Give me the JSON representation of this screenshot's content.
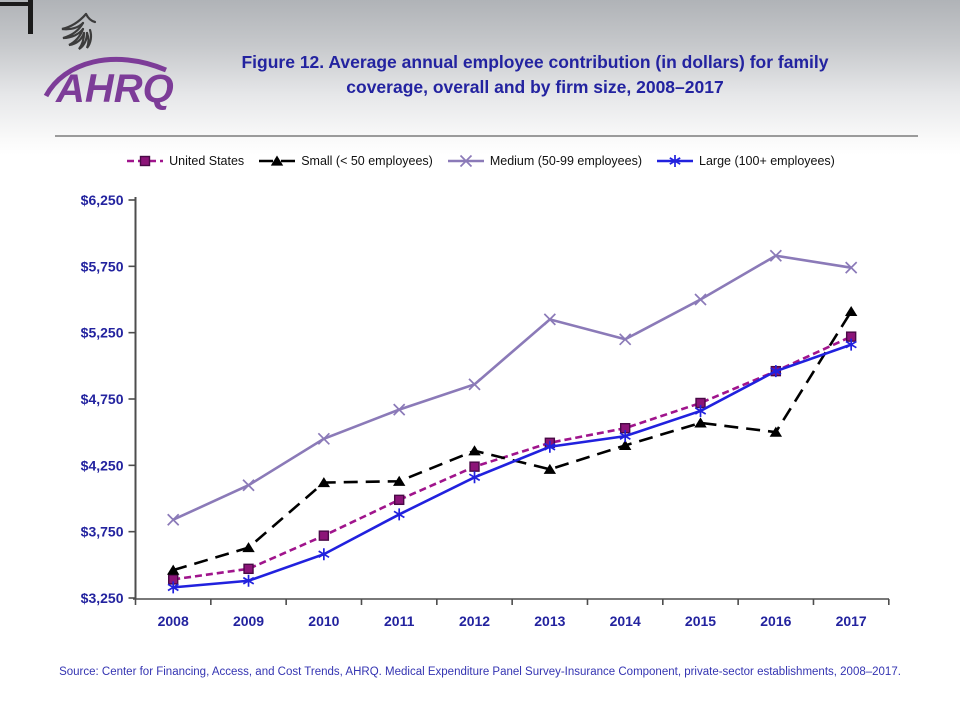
{
  "header": {
    "logo_text": "AHRQ",
    "title_line1": "Figure 12. Average annual employee contribution (in dollars) for family",
    "title_line2": "coverage, overall and by firm size, 2008–2017"
  },
  "footer": {
    "source": "Source: Center for Financing, Access, and Cost Trends, AHRQ. Medical Expenditure Panel Survey-Insurance Component, private-sector establishments, 2008–2017."
  },
  "colors": {
    "title_blue": "#2323A0",
    "axis_label_blue": "#23239F",
    "source_blue": "#3434B2",
    "axis_gray": "#4d4d4d",
    "logo_purple": "#7D3C98",
    "eagle_gray": "#3c3c3c"
  },
  "chart_data": {
    "type": "line",
    "title": "Figure 12. Average annual employee contribution (in dollars) for family coverage, overall and by firm size, 2008–2017",
    "categories": [
      "2008",
      "2009",
      "2010",
      "2011",
      "2012",
      "2013",
      "2014",
      "2015",
      "2016",
      "2017"
    ],
    "series": [
      {
        "name": "United States",
        "color": "#A0148C",
        "marker_fill": "#8C1478",
        "marker_edge": "#4A0A46",
        "marker": "square",
        "dash": "7 4",
        "values": [
          3390,
          3470,
          3720,
          3990,
          4240,
          4420,
          4530,
          4720,
          4960,
          5220
        ]
      },
      {
        "name": "Small (< 50 employees)",
        "color": "#000000",
        "marker_fill": "#000000",
        "marker_edge": "#000000",
        "marker": "triangle",
        "dash": "14 8",
        "values": [
          3460,
          3630,
          4120,
          4130,
          4360,
          4220,
          4400,
          4570,
          4500,
          5410
        ]
      },
      {
        "name": "Medium (50-99 employees)",
        "color": "#8B7AB8",
        "marker_fill": "#8B7AB8",
        "marker_edge": "#8B7AB8",
        "marker": "x",
        "dash": "",
        "values": [
          3840,
          4100,
          4450,
          4670,
          4860,
          5350,
          5200,
          5500,
          5830,
          5740
        ]
      },
      {
        "name": "Large (100+ employees)",
        "color": "#2121DE",
        "marker_fill": "#2121DE",
        "marker_edge": "#2121DE",
        "marker": "asterisk",
        "dash": "",
        "values": [
          3330,
          3380,
          3580,
          3880,
          4160,
          4390,
          4470,
          4660,
          4960,
          5160
        ]
      }
    ],
    "xlabel": "",
    "ylabel": "",
    "ylim": [
      3250,
      6250
    ],
    "y_ticks": [
      "$6,250",
      "$5,750",
      "$5,250",
      "$4,750",
      "$4,250",
      "$3,750",
      "$3,250"
    ],
    "grid": false,
    "legend_position": "top"
  }
}
